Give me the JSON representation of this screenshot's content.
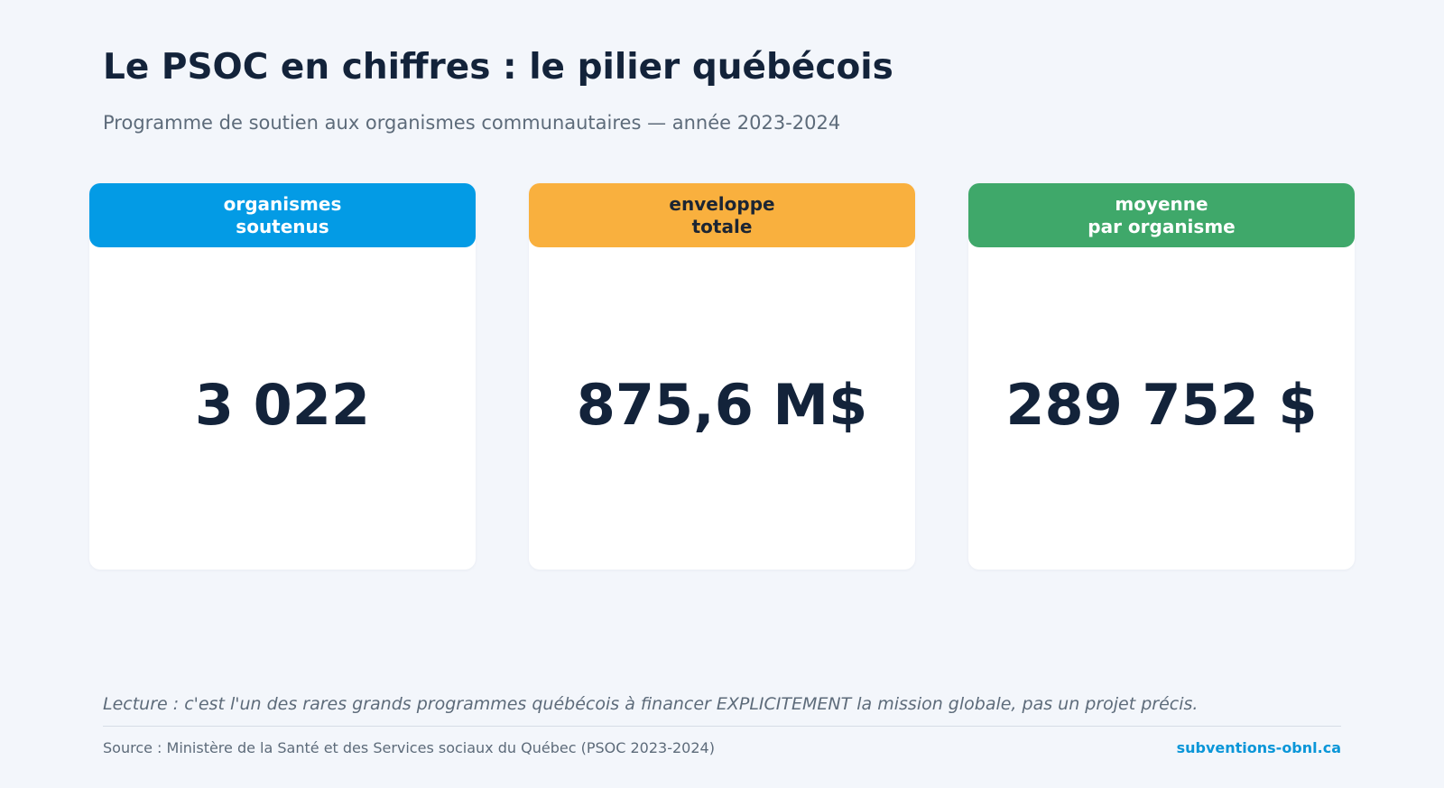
{
  "header": {
    "title": "Le PSOC en chiffres : le pilier québécois",
    "subtitle": "Programme de soutien aux organismes communautaires — année 2023-2024"
  },
  "cards": [
    {
      "label": [
        "organismes",
        "soutenus"
      ],
      "value": "3 022"
    },
    {
      "label": [
        "enveloppe",
        "totale"
      ],
      "value": "875,6 M$"
    },
    {
      "label": [
        "moyenne",
        "par organisme"
      ],
      "value": "289 752 $"
    }
  ],
  "footer": {
    "note": "Lecture : c'est l'un des rares grands programmes québécois à financer EXPLICITEMENT la mission globale, pas un projet précis.",
    "source": "Source : Ministère de la Santé et des Services sociaux du Québec (PSOC 2023-2024)",
    "site": "subventions-obnl.ca"
  }
}
